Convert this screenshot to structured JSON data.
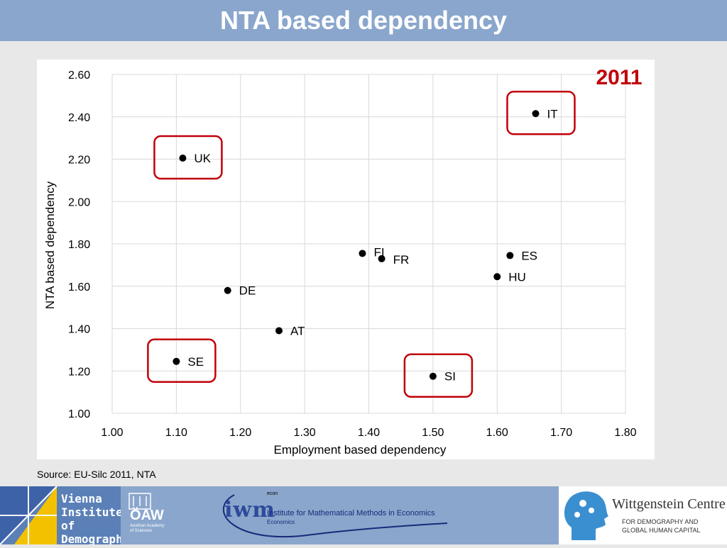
{
  "header": {
    "title": "NTA based dependency"
  },
  "year_label": "2011",
  "source": "Source: EU-Silc 2011, NTA",
  "colors": {
    "header_bg": "#8aa6cc",
    "highlight_box": "#c0000a",
    "year_text": "#c0000a",
    "point": "#000000",
    "grid": "#d9d9d9"
  },
  "chart_data": {
    "type": "scatter",
    "title": "",
    "xlabel": "Employment based dependency",
    "ylabel": "NTA based dependency",
    "xlim": [
      1.0,
      1.8
    ],
    "ylim": [
      1.0,
      2.6
    ],
    "x_ticks": [
      "1.00",
      "1.10",
      "1.20",
      "1.30",
      "1.40",
      "1.50",
      "1.60",
      "1.70",
      "1.80"
    ],
    "y_ticks": [
      "1.00",
      "1.20",
      "1.40",
      "1.60",
      "1.80",
      "2.00",
      "2.20",
      "2.40",
      "2.60"
    ],
    "grid": true,
    "points": [
      {
        "label": "UK",
        "x": 1.11,
        "y": 2.205,
        "highlight": true
      },
      {
        "label": "IT",
        "x": 1.66,
        "y": 2.415,
        "highlight": true
      },
      {
        "label": "FI",
        "x": 1.39,
        "y": 1.755,
        "highlight": false
      },
      {
        "label": "FR",
        "x": 1.42,
        "y": 1.73,
        "highlight": false
      },
      {
        "label": "ES",
        "x": 1.62,
        "y": 1.745,
        "highlight": false
      },
      {
        "label": "HU",
        "x": 1.6,
        "y": 1.645,
        "highlight": false
      },
      {
        "label": "DE",
        "x": 1.18,
        "y": 1.58,
        "highlight": false
      },
      {
        "label": "AT",
        "x": 1.26,
        "y": 1.39,
        "highlight": false
      },
      {
        "label": "SE",
        "x": 1.1,
        "y": 1.245,
        "highlight": true
      },
      {
        "label": "SI",
        "x": 1.5,
        "y": 1.175,
        "highlight": true
      }
    ]
  },
  "footer": {
    "vid_line1": "Vienna",
    "vid_line2": "Institute of",
    "vid_line3": "Demography",
    "oaw_label": "ÖAW",
    "oaw_sub": "Austrian Academy of Sciences",
    "iwm_mark": "iwm",
    "iwm_econ": "econ",
    "iwm_institute": "Institute for Mathematical Methods in Economics",
    "iwm_sub": "Economics",
    "wc_title": "Wittgenstein Centre",
    "wc_sub1": "FOR DEMOGRAPHY AND",
    "wc_sub2": "GLOBAL HUMAN CAPITAL"
  }
}
